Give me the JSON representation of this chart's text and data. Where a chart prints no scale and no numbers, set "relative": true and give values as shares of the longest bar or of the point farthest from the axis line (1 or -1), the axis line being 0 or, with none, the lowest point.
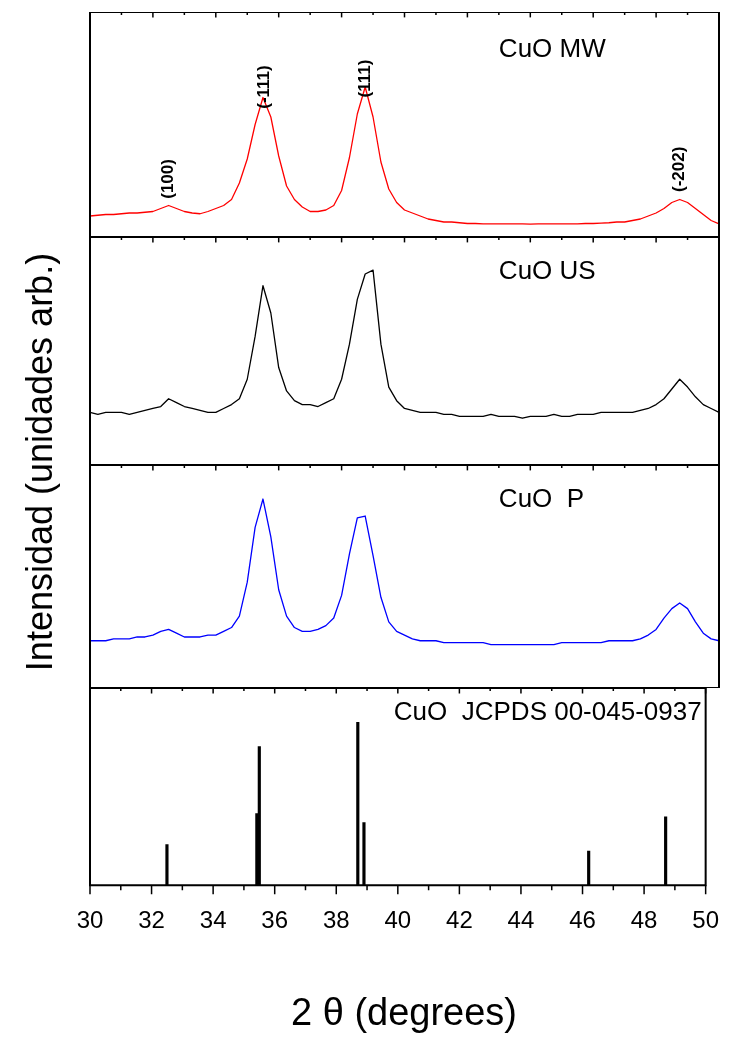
{
  "chart_data": [
    {
      "type": "line",
      "relative": true,
      "ylabel": "Intensidad (unidades arb.)",
      "tick_labels": false,
      "categories": [
        null,
        null,
        null,
        null,
        null,
        null,
        null,
        null,
        null,
        null,
        null,
        null,
        null,
        null,
        null,
        null,
        null,
        null,
        null,
        null,
        null,
        null,
        null,
        null,
        null,
        null,
        null,
        null,
        null,
        null,
        null,
        null,
        null,
        null,
        null,
        null,
        null,
        null,
        null,
        null,
        null,
        null,
        null,
        null,
        null,
        null,
        null,
        null,
        null,
        null,
        null,
        null,
        null,
        null,
        null,
        null,
        null,
        null,
        null,
        null,
        null,
        null,
        null,
        null,
        null,
        null,
        null,
        null,
        null,
        null,
        null,
        null,
        null,
        null,
        null,
        null,
        null,
        null,
        null,
        null,
        null
      ],
      "annotations": [
        "CuO MW",
        "(100)",
        "(-111)",
        "(111)",
        "(-202)"
      ],
      "series": [
        {
          "color": "#ff0000",
          "values": [
            0.14,
            0.145,
            0.15,
            0.15,
            0.155,
            0.16,
            0.16,
            0.165,
            0.17,
            0.19,
            0.21,
            0.19,
            0.17,
            0.16,
            0.155,
            0.17,
            0.19,
            0.21,
            0.25,
            0.36,
            0.52,
            0.75,
            0.93,
            0.8,
            0.54,
            0.34,
            0.25,
            0.2,
            0.17,
            0.17,
            0.18,
            0.21,
            0.31,
            0.53,
            0.82,
            1.0,
            0.8,
            0.5,
            0.32,
            0.23,
            0.18,
            0.16,
            0.14,
            0.12,
            0.11,
            0.1,
            0.1,
            0.095,
            0.09,
            0.09,
            0.088,
            0.087,
            0.087,
            0.088,
            0.087,
            0.087,
            0.086,
            0.087,
            0.087,
            0.088,
            0.087,
            0.087,
            0.088,
            0.09,
            0.09,
            0.092,
            0.095,
            0.1,
            0.1,
            0.11,
            0.12,
            0.14,
            0.16,
            0.19,
            0.23,
            0.25,
            0.23,
            0.19,
            0.15,
            0.11,
            0.087
          ]
        }
      ]
    },
    {
      "type": "line",
      "relative": true,
      "tick_labels": false,
      "categories": [
        null,
        null,
        null,
        null,
        null,
        null,
        null,
        null,
        null,
        null,
        null,
        null,
        null,
        null,
        null,
        null,
        null,
        null,
        null,
        null,
        null,
        null,
        null,
        null,
        null,
        null,
        null,
        null,
        null,
        null,
        null,
        null,
        null,
        null,
        null,
        null,
        null,
        null,
        null,
        null,
        null,
        null,
        null,
        null,
        null,
        null,
        null,
        null,
        null,
        null,
        null,
        null,
        null,
        null,
        null,
        null,
        null,
        null,
        null,
        null,
        null,
        null,
        null,
        null,
        null,
        null,
        null,
        null,
        null,
        null,
        null,
        null,
        null,
        null,
        null,
        null,
        null,
        null,
        null,
        null,
        null
      ],
      "annotations": [
        "CuO US"
      ],
      "series": [
        {
          "color": "#000000",
          "values": [
            0.27,
            0.26,
            0.27,
            0.27,
            0.27,
            0.26,
            0.27,
            0.28,
            0.29,
            0.3,
            0.34,
            0.32,
            0.3,
            0.29,
            0.28,
            0.27,
            0.27,
            0.29,
            0.31,
            0.34,
            0.44,
            0.66,
            0.92,
            0.78,
            0.5,
            0.38,
            0.33,
            0.31,
            0.31,
            0.3,
            0.32,
            0.34,
            0.44,
            0.62,
            0.85,
            0.98,
            1.0,
            0.62,
            0.4,
            0.33,
            0.29,
            0.28,
            0.27,
            0.27,
            0.27,
            0.26,
            0.26,
            0.25,
            0.25,
            0.25,
            0.25,
            0.26,
            0.25,
            0.25,
            0.25,
            0.24,
            0.25,
            0.25,
            0.25,
            0.26,
            0.25,
            0.25,
            0.26,
            0.26,
            0.26,
            0.27,
            0.27,
            0.27,
            0.27,
            0.27,
            0.28,
            0.29,
            0.31,
            0.34,
            0.39,
            0.44,
            0.4,
            0.35,
            0.31,
            0.29,
            0.27
          ]
        }
      ]
    },
    {
      "type": "line",
      "relative": true,
      "tick_labels": false,
      "categories": [
        null,
        null,
        null,
        null,
        null,
        null,
        null,
        null,
        null,
        null,
        null,
        null,
        null,
        null,
        null,
        null,
        null,
        null,
        null,
        null,
        null,
        null,
        null,
        null,
        null,
        null,
        null,
        null,
        null,
        null,
        null,
        null,
        null,
        null,
        null,
        null,
        null,
        null,
        null,
        null,
        null,
        null,
        null,
        null,
        null,
        null,
        null,
        null,
        null,
        null,
        null,
        null,
        null,
        null,
        null,
        null,
        null,
        null,
        null,
        null,
        null,
        null,
        null,
        null,
        null,
        null,
        null,
        null,
        null,
        null,
        null,
        null,
        null,
        null,
        null,
        null,
        null,
        null,
        null,
        null,
        null
      ],
      "annotations": [
        "CuO  P"
      ],
      "series": [
        {
          "color": "#0000ff",
          "values": [
            0.25,
            0.25,
            0.25,
            0.26,
            0.26,
            0.26,
            0.27,
            0.27,
            0.28,
            0.3,
            0.31,
            0.29,
            0.27,
            0.27,
            0.27,
            0.28,
            0.28,
            0.3,
            0.32,
            0.38,
            0.56,
            0.85,
            1.0,
            0.8,
            0.52,
            0.38,
            0.32,
            0.3,
            0.3,
            0.31,
            0.33,
            0.37,
            0.49,
            0.71,
            0.9,
            0.91,
            0.7,
            0.48,
            0.35,
            0.3,
            0.28,
            0.26,
            0.25,
            0.25,
            0.25,
            0.24,
            0.24,
            0.24,
            0.24,
            0.24,
            0.24,
            0.23,
            0.23,
            0.23,
            0.23,
            0.23,
            0.23,
            0.23,
            0.23,
            0.23,
            0.24,
            0.24,
            0.24,
            0.24,
            0.24,
            0.24,
            0.25,
            0.25,
            0.25,
            0.25,
            0.26,
            0.28,
            0.31,
            0.37,
            0.42,
            0.45,
            0.42,
            0.35,
            0.29,
            0.26,
            0.25
          ]
        }
      ]
    },
    {
      "type": "bar",
      "relative": true,
      "xlabel": "2 θ (degrees)",
      "xlim": [
        30,
        50
      ],
      "xticks": [
        30,
        {
          "value": 31,
          "label": null
        },
        32,
        {
          "value": 33,
          "label": null
        },
        34,
        {
          "value": 35,
          "label": null
        },
        36,
        {
          "value": 37,
          "label": null
        },
        38,
        {
          "value": 39,
          "label": null
        },
        40,
        {
          "value": 41,
          "label": null
        },
        42,
        {
          "value": 43,
          "label": null
        },
        44,
        {
          "value": 45,
          "label": null
        },
        46,
        {
          "value": 47,
          "label": null
        },
        48,
        {
          "value": 49,
          "label": null
        },
        50
      ],
      "tick_labels": "x",
      "annotations": [
        "CuO  JCPDS 00-045-0937"
      ],
      "series": [
        {
          "color": "#000000",
          "x": [
            32.5,
            35.42,
            35.5,
            38.7,
            38.9,
            46.2,
            48.7
          ],
          "values": [
            0.25,
            0.44,
            0.85,
            1.0,
            0.385,
            0.21,
            0.42
          ]
        }
      ]
    }
  ]
}
